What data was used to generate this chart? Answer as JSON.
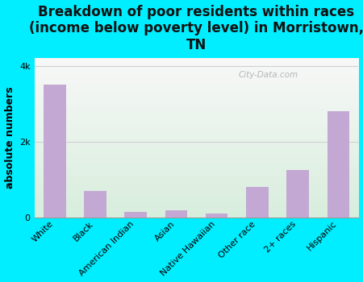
{
  "title": "Breakdown of poor residents within races\n(income below poverty level) in Morristown,\nTN",
  "ylabel": "absolute numbers",
  "categories": [
    "White",
    "Black",
    "American Indian",
    "Asian",
    "Native Hawaiian",
    "Other race",
    "2+ races",
    "Hispanic"
  ],
  "values": [
    3500,
    700,
    150,
    200,
    100,
    800,
    1250,
    2800
  ],
  "bar_color": "#c4a8d4",
  "background_outer": "#00eeff",
  "ylim": [
    0,
    4200
  ],
  "ytick_positions": [
    0,
    2000,
    4000
  ],
  "ytick_labels": [
    "0",
    "2k",
    "4k"
  ],
  "title_fontsize": 12,
  "ylabel_fontsize": 9,
  "tick_fontsize": 8,
  "watermark": "City-Data.com",
  "grid_color": "#d0d0d0",
  "grad_top_color": "#f8f8f8",
  "grad_bottom_color": "#d8eedd"
}
